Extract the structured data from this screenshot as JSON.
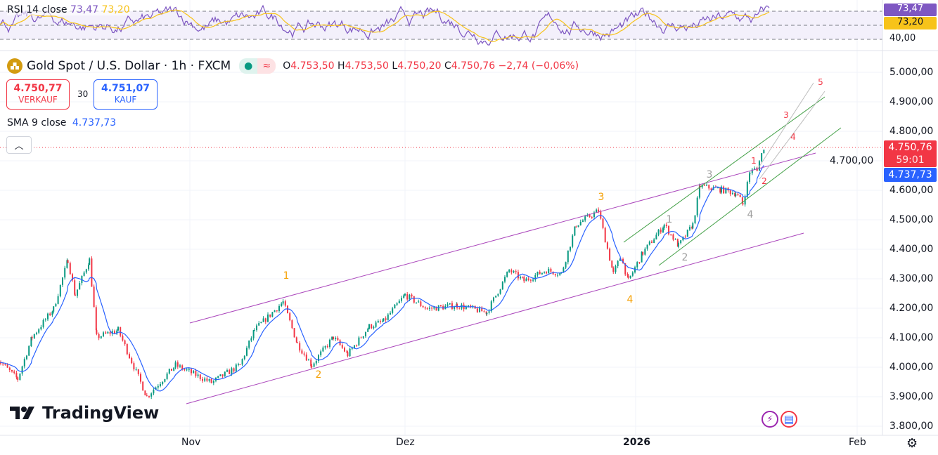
{
  "rsi": {
    "label": "RSI 14 close",
    "value": "73,47",
    "ma_value": "73,20",
    "axis_hidden": "40,00",
    "color": "#7e57c2",
    "ma_color": "#f7c31a"
  },
  "header": {
    "symbol": "Gold Spot / U.S. Dollar · 1h · FXCM",
    "ohlc": {
      "o_label": "O",
      "o": "4.753,50",
      "h_label": "H",
      "h": "4.753,50",
      "l_label": "L",
      "l": "4.750,20",
      "c_label": "C",
      "c": "4.750,76",
      "change": "−2,74 (−0,06%)"
    },
    "status_icon": "market-open-dot",
    "status_icon2": "approx-icon"
  },
  "trade": {
    "sell_price": "4.750,77",
    "sell_label": "VERKAUF",
    "spread": "30",
    "buy_price": "4.751,07",
    "buy_label": "KAUF"
  },
  "sma": {
    "label": "SMA 9 close",
    "value": "4.737,73",
    "color": "#2962ff"
  },
  "price_tag": {
    "price": "4.750,76",
    "countdown": "59:01",
    "sma": "4.737,73"
  },
  "price_axis": [
    "5.000,00",
    "4.900,00",
    "4.800,00",
    "4.700,00",
    "4.600,00",
    "4.500,00",
    "4.400,00",
    "4.300,00",
    "4.200,00",
    "4.100,00",
    "4.000,00",
    "3.900,00",
    "3.800,00"
  ],
  "time_axis": [
    "Nov",
    "Dez",
    "2026",
    "Feb"
  ],
  "brand": "TradingView",
  "colors": {
    "up": "#089981",
    "down": "#f23645",
    "channel": "#ab47bc",
    "green_channel": "#43a047",
    "wave_orange": "#f59f00",
    "wave_gray": "#9e9e9e",
    "wave_red": "#f23645"
  },
  "chart_data": {
    "type": "candlestick",
    "title": "Gold Spot / U.S. Dollar · 1h · FXCM",
    "ylim": [
      3800,
      5000
    ],
    "x_ticks": [
      "Nov",
      "Dez",
      "2026",
      "Feb"
    ],
    "close_path": [
      [
        "2025-10-05",
        4031
      ],
      [
        "2025-10-08",
        3960
      ],
      [
        "2025-10-10",
        4102
      ],
      [
        "2025-10-13",
        4198
      ],
      [
        "2025-10-15",
        4364
      ],
      [
        "2025-10-16",
        4245
      ],
      [
        "2025-10-18",
        4364
      ],
      [
        "2025-10-19",
        4102
      ],
      [
        "2025-10-22",
        4126
      ],
      [
        "2025-10-26",
        3900
      ],
      [
        "2025-10-30",
        4007
      ],
      [
        "2025-11-04",
        3948
      ],
      [
        "2025-11-08",
        4007
      ],
      [
        "2025-11-10",
        4126
      ],
      [
        "2025-11-14",
        4221
      ],
      [
        "2025-11-16",
        4079
      ],
      [
        "2025-11-18",
        4007
      ],
      [
        "2025-11-21",
        4102
      ],
      [
        "2025-11-23",
        4043
      ],
      [
        "2025-11-26",
        4138
      ],
      [
        "2025-11-28",
        4155
      ],
      [
        "2025-12-01",
        4245
      ],
      [
        "2025-12-04",
        4198
      ],
      [
        "2025-12-08",
        4210
      ],
      [
        "2025-12-12",
        4186
      ],
      [
        "2025-12-15",
        4329
      ],
      [
        "2025-12-17",
        4293
      ],
      [
        "2025-12-20",
        4329
      ],
      [
        "2025-12-22",
        4317
      ],
      [
        "2025-12-24",
        4483
      ],
      [
        "2025-12-27",
        4531
      ],
      [
        "2025-12-29",
        4317
      ],
      [
        "2025-12-30",
        4376
      ],
      [
        "2025-12-31",
        4293
      ],
      [
        "2026-01-02",
        4388
      ],
      [
        "2026-01-05",
        4483
      ],
      [
        "2026-01-07",
        4412
      ],
      [
        "2026-01-09",
        4483
      ],
      [
        "2026-01-10",
        4614
      ],
      [
        "2026-01-13",
        4602
      ],
      [
        "2026-01-15",
        4590
      ],
      [
        "2026-01-16",
        4555
      ],
      [
        "2026-01-17",
        4662
      ],
      [
        "2026-01-18",
        4674
      ],
      [
        "2026-01-19",
        4750.76
      ]
    ],
    "last_price": 4750.76,
    "sma9_last": 4737.73,
    "rsi_last": 73.47,
    "rsi_ma_last": 73.2,
    "rsi_bands": [
      30,
      70
    ],
    "wave_labels": {
      "orange": [
        "1",
        "2",
        "3",
        "4"
      ],
      "gray": [
        "1",
        "2",
        "3",
        "4"
      ],
      "red": [
        "1",
        "2",
        "3",
        "4",
        "5"
      ]
    }
  }
}
